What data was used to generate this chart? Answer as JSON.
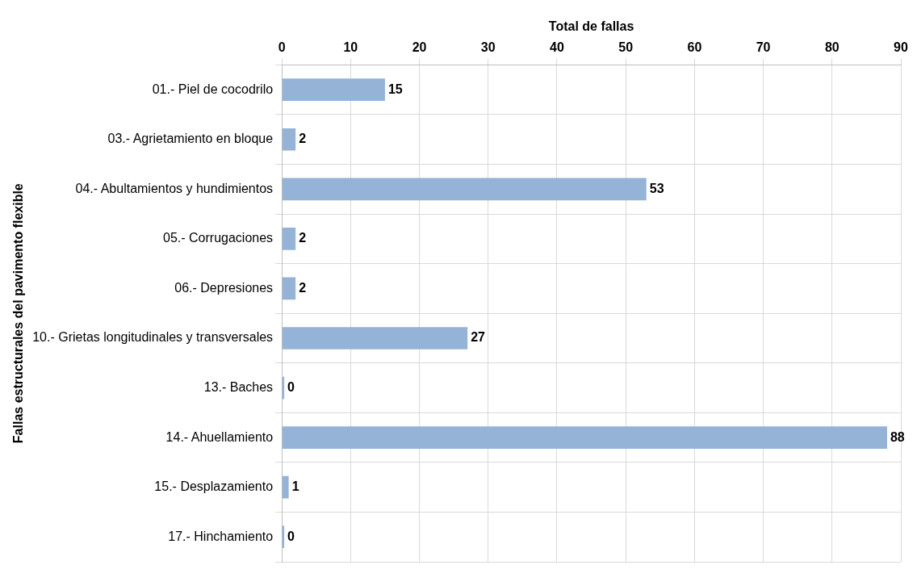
{
  "chart_data": {
    "type": "bar",
    "orientation": "horizontal",
    "xlabel": "Total de fallas",
    "ylabel": "Fallas estructurales del pavimento flexible",
    "categories": [
      "01.- Piel de cocodrilo",
      "03.- Agrietamiento en bloque",
      "04.- Abultamientos y hundimientos",
      "05.- Corrugaciones",
      "06.- Depresiones",
      "10.- Grietas longitudinales y transversales",
      "13.- Baches",
      "14.- Ahuellamiento",
      "15.- Desplazamiento",
      "17.- Hinchamiento"
    ],
    "values": [
      15,
      2,
      53,
      2,
      2,
      27,
      0,
      88,
      1,
      0
    ],
    "color": "#95b3d7",
    "xlim": [
      0,
      90
    ],
    "xticks": [
      0,
      10,
      20,
      30,
      40,
      50,
      60,
      70,
      80,
      90
    ],
    "grid": true,
    "data_labels": true,
    "legend": false
  }
}
